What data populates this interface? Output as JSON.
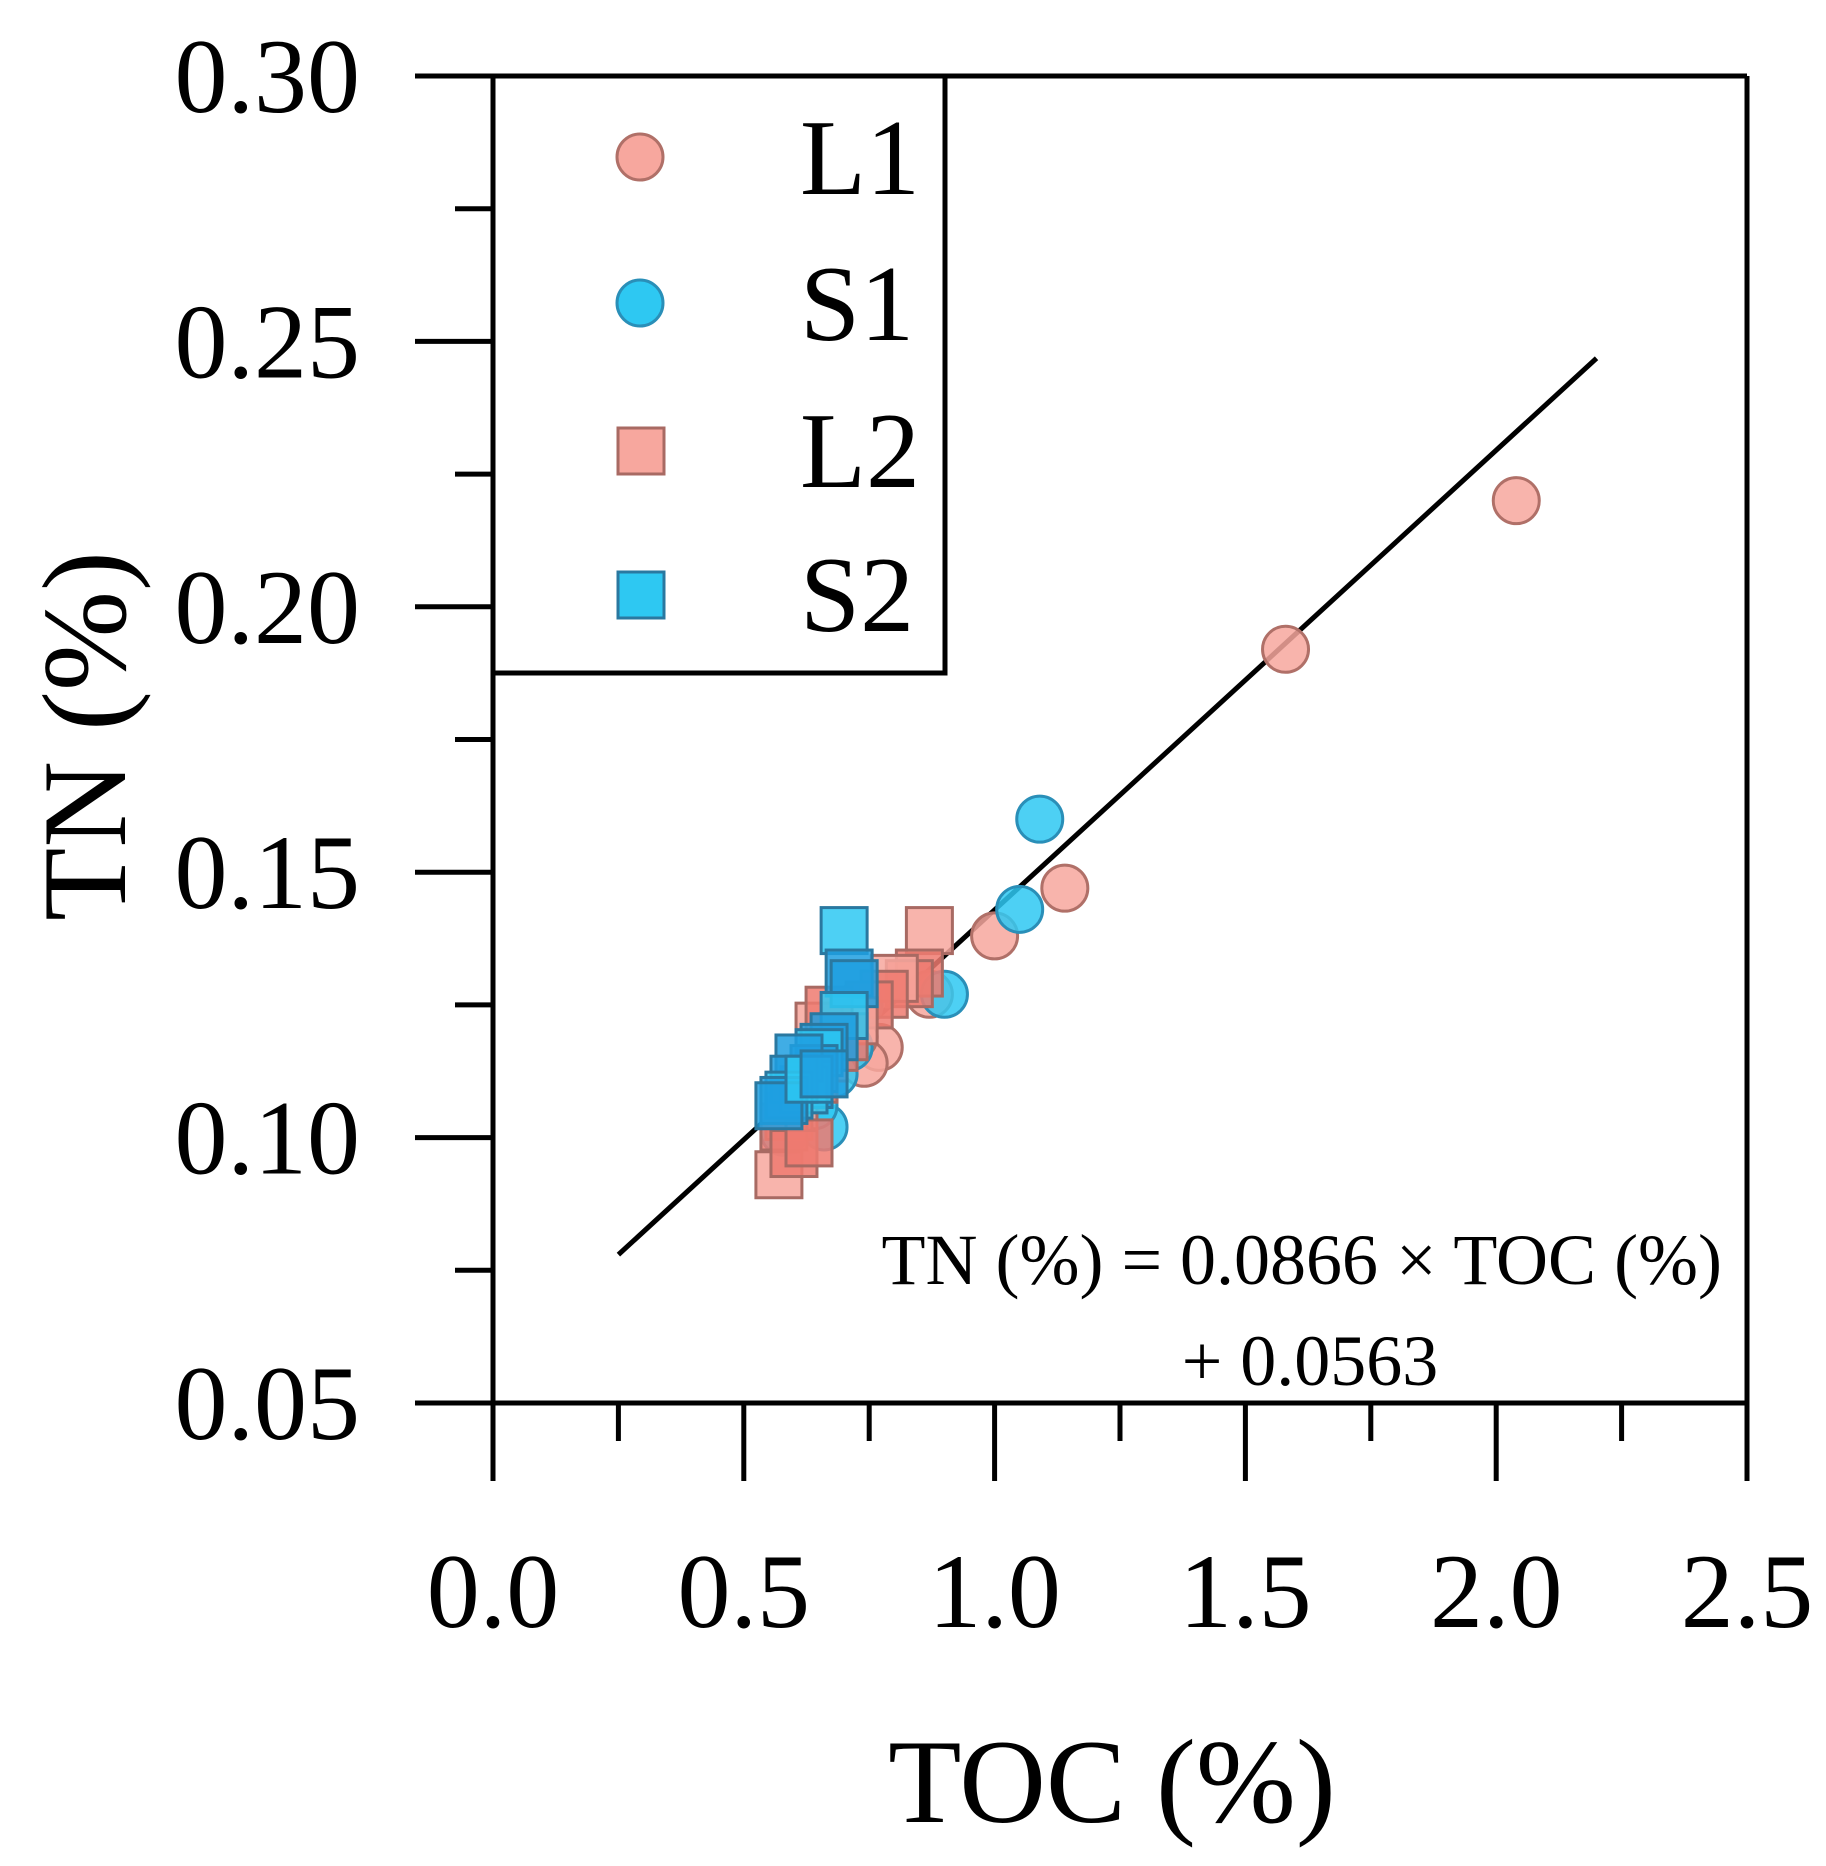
{
  "chart_data": {
    "type": "scatter",
    "title": "",
    "xlabel": "TOC (%)",
    "ylabel": "TN (%)",
    "xlim": [
      0.0,
      2.5
    ],
    "ylim": [
      0.05,
      0.3
    ],
    "xticks": [
      "0.0",
      "0.5",
      "1.0",
      "1.5",
      "2.0",
      "2.5"
    ],
    "xtick_values": [
      0.0,
      0.5,
      1.0,
      1.5,
      2.0,
      2.5
    ],
    "yticks": [
      "0.30",
      "0.25",
      "0.20",
      "0.15",
      "0.10",
      "0.05"
    ],
    "ytick_values": [
      0.3,
      0.25,
      0.2,
      0.15,
      0.1,
      0.05
    ],
    "legend_position": "top-left",
    "colors": {
      "L": "#f7a79e",
      "L_edge": "#c07870",
      "S": "#2ec8f2",
      "S_edge": "#2a8fb8",
      "L2_dense": "#ef7a70",
      "S2_dense": "#1e9fe0",
      "axis": "#000000"
    },
    "series": [
      {
        "name": "L1",
        "marker": "circle",
        "color": "#f7a79e",
        "x": [
          2.04,
          1.58,
          1.14,
          1.0,
          0.87,
          0.77,
          0.74,
          0.72,
          0.69,
          0.67,
          0.64,
          0.62,
          0.6,
          0.59
        ],
        "y": [
          0.22,
          0.192,
          0.147,
          0.138,
          0.127,
          0.117,
          0.114,
          0.119,
          0.121,
          0.118,
          0.113,
          0.109,
          0.106,
          0.104
        ]
      },
      {
        "name": "S1",
        "marker": "circle",
        "color": "#2ec8f2",
        "x": [
          1.09,
          1.05,
          0.9,
          0.73,
          0.71,
          0.68,
          0.66,
          0.64,
          0.62,
          0.6,
          0.58
        ],
        "y": [
          0.16,
          0.143,
          0.127,
          0.125,
          0.117,
          0.112,
          0.102,
          0.106,
          0.109,
          0.104,
          0.101
        ]
      },
      {
        "name": "L2",
        "marker": "square",
        "color": "#f7a79e",
        "x": [
          0.87,
          0.85,
          0.83,
          0.8,
          0.78,
          0.75,
          0.72,
          0.7,
          0.68,
          0.66,
          0.64,
          0.62,
          0.6,
          0.59,
          0.58,
          0.57,
          0.6,
          0.63,
          0.65,
          0.67
        ],
        "y": [
          0.139,
          0.131,
          0.129,
          0.13,
          0.127,
          0.125,
          0.122,
          0.119,
          0.117,
          0.115,
          0.111,
          0.109,
          0.106,
          0.104,
          0.102,
          0.093,
          0.097,
          0.099,
          0.121,
          0.124
        ]
      },
      {
        "name": "S2",
        "marker": "square",
        "color": "#2ec8f2",
        "x": [
          0.7,
          0.71,
          0.72,
          0.7,
          0.68,
          0.66,
          0.65,
          0.64,
          0.63,
          0.62,
          0.61,
          0.6,
          0.59,
          0.58,
          0.57,
          0.63,
          0.66
        ],
        "y": [
          0.139,
          0.131,
          0.129,
          0.123,
          0.119,
          0.117,
          0.116,
          0.113,
          0.11,
          0.109,
          0.115,
          0.111,
          0.108,
          0.107,
          0.106,
          0.111,
          0.112
        ]
      }
    ],
    "fit_line": {
      "slope": 0.0866,
      "intercept": 0.0563,
      "x_range": [
        0.25,
        2.2
      ]
    },
    "annotation": {
      "line1": "TN (%) = 0.0866 × TOC (%)",
      "line2": "+ 0.0563"
    }
  }
}
